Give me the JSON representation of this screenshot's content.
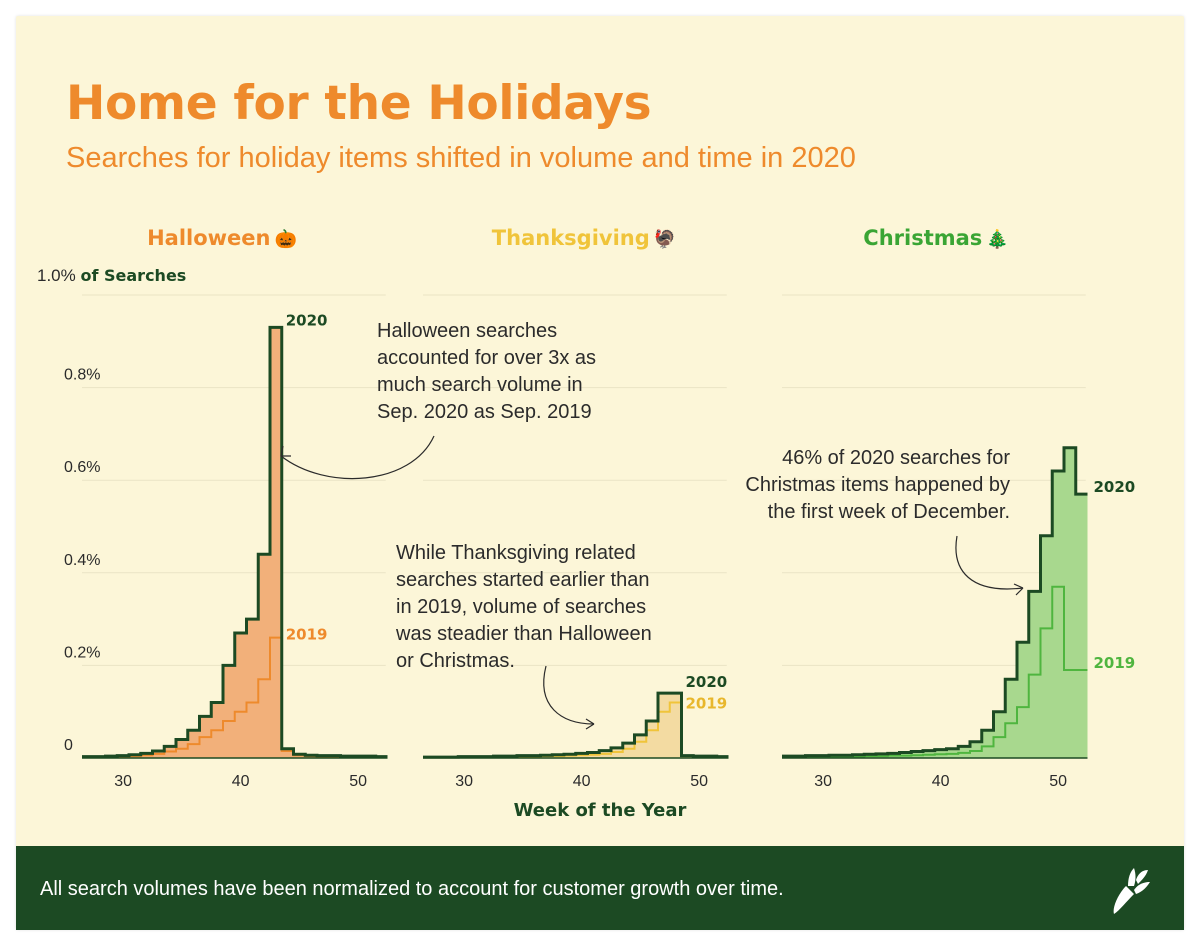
{
  "title": "Home for the Holidays",
  "subtitle": "Searches for holiday items shifted in volume and time in 2020",
  "y_axis": {
    "top_value": "1.0%",
    "top_suffix": "of Searches",
    "ticks": [
      "0.8%",
      "0.6%",
      "0.4%",
      "0.2%",
      "0"
    ]
  },
  "xlabel": "Week of the Year",
  "footer": "All search volumes have been normalized to account for customer growth over time.",
  "colors": {
    "background": "#fcf6d8",
    "dark_green": "#1c4a23",
    "halloween": "#ee8a2c",
    "thanksgiving": "#f0c43a",
    "christmas": "#4fb53f"
  },
  "panels": [
    {
      "name": "Halloween",
      "emoji": "🎃",
      "note": [
        "Halloween searches",
        "accounted for over 3x as",
        "much search volume in",
        "Sep. 2020 as Sep. 2019"
      ],
      "label_2020": "2020",
      "label_2019": "2019"
    },
    {
      "name": "Thanksgiving",
      "emoji": "🦃",
      "note": [
        "While Thanksgiving related",
        "searches started earlier than",
        "in 2019, volume of searches",
        "was steadier than Halloween",
        "or Christmas."
      ],
      "label_2020": "2020",
      "label_2019": "2019"
    },
    {
      "name": "Christmas",
      "emoji": "🎄",
      "note": [
        "46% of 2020 searches for",
        "Christmas items happened by",
        "the first week of December."
      ],
      "label_2020": "2020",
      "label_2019": "2019"
    }
  ],
  "chart_data": [
    {
      "type": "area",
      "title": "Halloween",
      "xlabel": "Week of the Year",
      "ylabel": "% of Searches",
      "xlim": [
        27,
        52
      ],
      "ylim": [
        0,
        1.0
      ],
      "xticks": [
        30,
        40,
        50
      ],
      "series": [
        {
          "name": "2020",
          "x": [
            27,
            28,
            29,
            30,
            31,
            32,
            33,
            34,
            35,
            36,
            37,
            38,
            39,
            40,
            41,
            42,
            43,
            44,
            45,
            46,
            47,
            48,
            49,
            50,
            51,
            52
          ],
          "values": [
            0.003,
            0.003,
            0.004,
            0.005,
            0.007,
            0.01,
            0.015,
            0.025,
            0.04,
            0.06,
            0.09,
            0.12,
            0.2,
            0.27,
            0.3,
            0.44,
            0.93,
            0.02,
            0.008,
            0.006,
            0.005,
            0.005,
            0.004,
            0.004,
            0.004,
            0.003
          ]
        },
        {
          "name": "2019",
          "x": [
            27,
            28,
            29,
            30,
            31,
            32,
            33,
            34,
            35,
            36,
            37,
            38,
            39,
            40,
            41,
            42,
            43,
            44,
            45,
            46,
            47,
            48,
            49,
            50,
            51,
            52
          ],
          "values": [
            0.002,
            0.002,
            0.002,
            0.003,
            0.004,
            0.006,
            0.009,
            0.014,
            0.02,
            0.03,
            0.045,
            0.06,
            0.08,
            0.1,
            0.12,
            0.17,
            0.26,
            0.015,
            0.006,
            0.004,
            0.003,
            0.003,
            0.003,
            0.003,
            0.003,
            0.002
          ]
        }
      ]
    },
    {
      "type": "area",
      "title": "Thanksgiving",
      "xlabel": "Week of the Year",
      "ylabel": "% of Searches",
      "xlim": [
        27,
        52
      ],
      "ylim": [
        0,
        1.0
      ],
      "xticks": [
        30,
        40,
        50
      ],
      "series": [
        {
          "name": "2020",
          "x": [
            27,
            28,
            29,
            30,
            31,
            32,
            33,
            34,
            35,
            36,
            37,
            38,
            39,
            40,
            41,
            42,
            43,
            44,
            45,
            46,
            47,
            48,
            49,
            50,
            51,
            52
          ],
          "values": [
            0.002,
            0.002,
            0.002,
            0.003,
            0.003,
            0.003,
            0.004,
            0.004,
            0.005,
            0.005,
            0.006,
            0.007,
            0.008,
            0.01,
            0.012,
            0.016,
            0.022,
            0.032,
            0.05,
            0.08,
            0.14,
            0.14,
            0.005,
            0.004,
            0.004,
            0.003
          ]
        },
        {
          "name": "2019",
          "x": [
            27,
            28,
            29,
            30,
            31,
            32,
            33,
            34,
            35,
            36,
            37,
            38,
            39,
            40,
            41,
            42,
            43,
            44,
            45,
            46,
            47,
            48,
            49,
            50,
            51,
            52
          ],
          "values": [
            0.001,
            0.001,
            0.001,
            0.001,
            0.002,
            0.002,
            0.002,
            0.002,
            0.003,
            0.003,
            0.004,
            0.004,
            0.005,
            0.006,
            0.007,
            0.009,
            0.013,
            0.02,
            0.035,
            0.06,
            0.1,
            0.12,
            0.004,
            0.003,
            0.003,
            0.002
          ]
        }
      ]
    },
    {
      "type": "area",
      "title": "Christmas",
      "xlabel": "Week of the Year",
      "ylabel": "% of Searches",
      "xlim": [
        27,
        52
      ],
      "ylim": [
        0,
        1.0
      ],
      "xticks": [
        30,
        40,
        50
      ],
      "series": [
        {
          "name": "2020",
          "x": [
            27,
            28,
            29,
            30,
            31,
            32,
            33,
            34,
            35,
            36,
            37,
            38,
            39,
            40,
            41,
            42,
            43,
            44,
            45,
            46,
            47,
            48,
            49,
            50,
            51,
            52
          ],
          "values": [
            0.004,
            0.004,
            0.005,
            0.005,
            0.006,
            0.006,
            0.007,
            0.008,
            0.009,
            0.01,
            0.012,
            0.014,
            0.016,
            0.018,
            0.02,
            0.025,
            0.035,
            0.06,
            0.1,
            0.17,
            0.25,
            0.36,
            0.48,
            0.62,
            0.67,
            0.57
          ]
        },
        {
          "name": "2019",
          "x": [
            27,
            28,
            29,
            30,
            31,
            32,
            33,
            34,
            35,
            36,
            37,
            38,
            39,
            40,
            41,
            42,
            43,
            44,
            45,
            46,
            47,
            48,
            49,
            50,
            51,
            52
          ],
          "values": [
            0.002,
            0.002,
            0.002,
            0.002,
            0.003,
            0.003,
            0.003,
            0.004,
            0.004,
            0.005,
            0.005,
            0.006,
            0.007,
            0.008,
            0.009,
            0.011,
            0.015,
            0.025,
            0.045,
            0.075,
            0.11,
            0.18,
            0.28,
            0.37,
            0.19,
            0.19
          ]
        }
      ]
    }
  ]
}
